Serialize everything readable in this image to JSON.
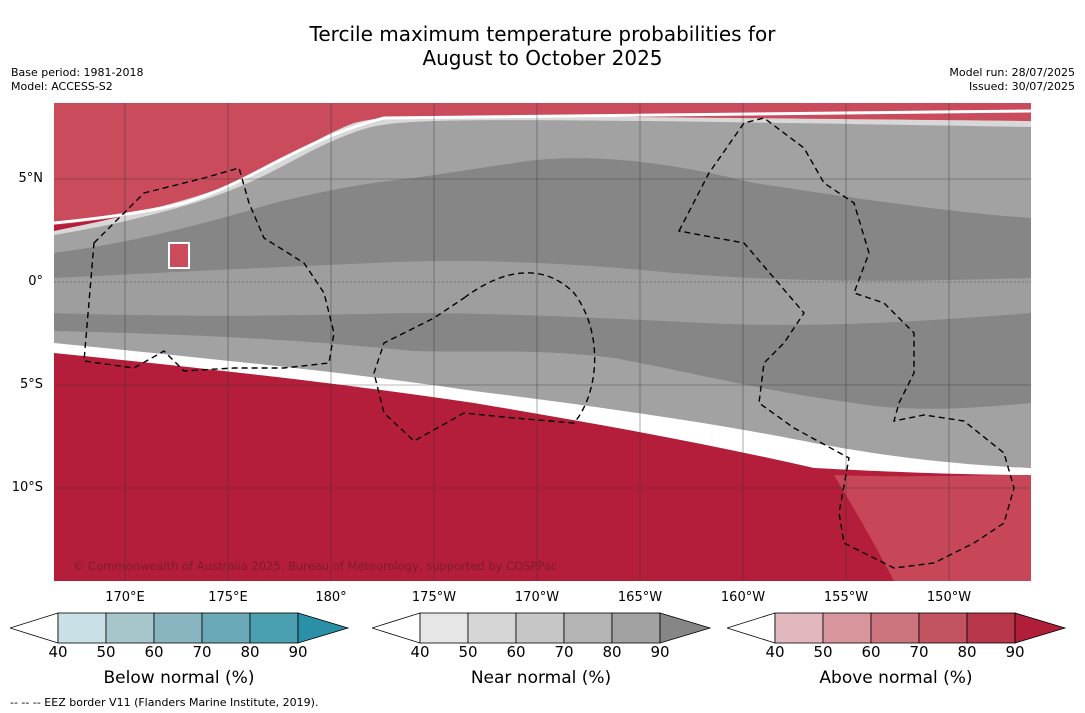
{
  "title_line1": "Tercile maximum temperature probabilities for",
  "title_line2": "August to October 2025",
  "base_period": "Base period: 1981-2018",
  "model": "Model: ACCESS-S2",
  "model_run": "Model run: 28/07/2025",
  "issued": "Issued: 30/07/2025",
  "copyright": "© Commonwealth of Australia 2025, Bureau of Meteorology, supported by COSPPac",
  "lat_labels": [
    "5°N",
    "0°",
    "5°S",
    "10°S"
  ],
  "lon_labels": [
    "170°E",
    "175°E",
    "180°",
    "175°W",
    "170°W",
    "165°W",
    "160°W",
    "155°W",
    "150°W"
  ],
  "colorbars": [
    {
      "label": "Below normal (%)",
      "ticks": [
        "40",
        "50",
        "60",
        "70",
        "80",
        "90"
      ],
      "colors": [
        "#ffffff",
        "#c8e0e6",
        "#a6c6cc",
        "#88b6c0",
        "#6aaab8",
        "#4aa0b0",
        "#2a90a8"
      ]
    },
    {
      "label": "Near normal (%)",
      "ticks": [
        "40",
        "50",
        "60",
        "70",
        "80",
        "90"
      ],
      "colors": [
        "#ffffff",
        "#e6e6e6",
        "#d6d6d6",
        "#c6c6c6",
        "#b4b4b4",
        "#a2a2a2",
        "#868686"
      ]
    },
    {
      "label": "Above normal (%)",
      "ticks": [
        "40",
        "50",
        "60",
        "70",
        "80",
        "90"
      ],
      "colors": [
        "#ffffff",
        "#e0b8bd",
        "#d8959c",
        "#cc757e",
        "#c25462",
        "#b8364a",
        "#b01e3a"
      ]
    }
  ],
  "footer": "--  --  -- EEZ border V11 (Flanders Marine Institute, 2019)."
}
